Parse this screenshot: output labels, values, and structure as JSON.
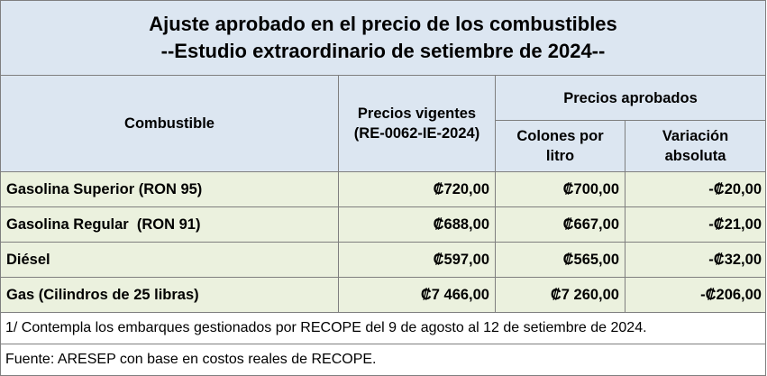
{
  "title": {
    "line1": "Ajuste aprobado en el precio de los combustibles",
    "line2": "--Estudio extraordinario de setiembre de 2024--"
  },
  "headers": {
    "fuel": "Combustible",
    "current_line1": "Precios vigentes",
    "current_line2": "(RE-0062-IE-2024)",
    "approved": "Precios aprobados",
    "colones_line1": "Colones por",
    "colones_line2": "litro",
    "variation_line1": "Variación",
    "variation_line2": "absoluta"
  },
  "rows": [
    {
      "fuel": "Gasolina Superior (RON 95)",
      "current": "₡720,00",
      "approved": "₡700,00",
      "variation": "-₡20,00"
    },
    {
      "fuel": "Gasolina Regular  (RON 91)",
      "current": "₡688,00",
      "approved": "₡667,00",
      "variation": "-₡21,00"
    },
    {
      "fuel": "Diésel",
      "current": "₡597,00",
      "approved": "₡565,00",
      "variation": "-₡32,00"
    },
    {
      "fuel": "Gas (Cilindros de 25 libras)",
      "current": "₡7 466,00",
      "approved": "₡7 260,00",
      "variation": "-₡206,00"
    }
  ],
  "notes": {
    "note1": "1/ Contempla los embarques gestionados por RECOPE del 9 de agosto al 12 de setiembre de 2024.",
    "source": "Fuente: ARESEP con base en costos reales de RECOPE."
  },
  "colors": {
    "header_bg": "#dce6f1",
    "row_bg": "#ebf1de",
    "border": "#7f7f7f"
  }
}
